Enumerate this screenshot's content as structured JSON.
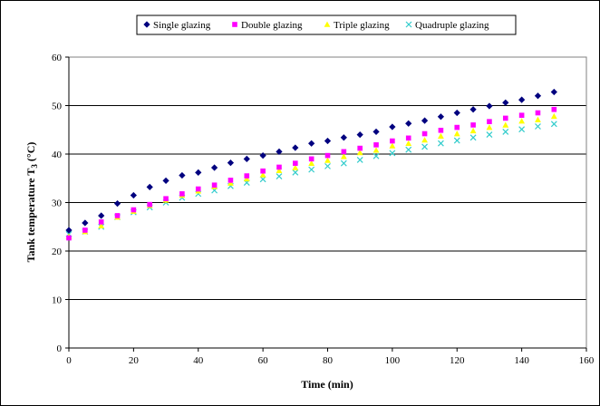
{
  "chart_data": {
    "type": "scatter",
    "title": "",
    "xlabel": "Time (min)",
    "ylabel": "Tank temperature T",
    "ylabel_sub": "3",
    "ylabel_unit": " (°C)",
    "xlim": [
      0,
      160
    ],
    "ylim": [
      0,
      60
    ],
    "x_ticks": [
      0,
      20,
      40,
      60,
      80,
      100,
      120,
      140,
      160
    ],
    "y_ticks": [
      0,
      10,
      20,
      30,
      40,
      50,
      60
    ],
    "grid": "horizontal",
    "legend_position": "top",
    "x": [
      0,
      5,
      10,
      15,
      20,
      25,
      30,
      35,
      40,
      45,
      50,
      55,
      60,
      65,
      70,
      75,
      80,
      85,
      90,
      95,
      100,
      105,
      110,
      115,
      120,
      125,
      130,
      135,
      140,
      145,
      150
    ],
    "series": [
      {
        "name": "Single glazing",
        "marker": "diamond",
        "color": "#00007F",
        "values": [
          24.3,
          25.8,
          27.3,
          29.8,
          31.5,
          33.2,
          34.5,
          35.6,
          36.2,
          37.2,
          38.2,
          39.0,
          39.7,
          40.5,
          41.3,
          42.2,
          42.7,
          43.4,
          44.0,
          44.6,
          45.6,
          46.3,
          46.9,
          47.7,
          48.5,
          49.2,
          49.9,
          50.6,
          51.2,
          52.0,
          52.8
        ]
      },
      {
        "name": "Double glazing",
        "marker": "square",
        "color": "#FF00FF",
        "values": [
          22.7,
          24.3,
          26.0,
          27.3,
          28.5,
          29.6,
          30.8,
          31.8,
          32.8,
          33.6,
          34.6,
          35.5,
          36.5,
          37.3,
          38.1,
          39.0,
          39.7,
          40.5,
          41.2,
          41.9,
          42.7,
          43.3,
          44.2,
          44.9,
          45.5,
          46.0,
          46.7,
          47.4,
          48.0,
          48.5,
          49.2
        ]
      },
      {
        "name": "Triple glazing",
        "marker": "triangle",
        "color": "#FFFF00",
        "values": [
          23.0,
          24.0,
          25.2,
          27.0,
          28.2,
          29.4,
          30.5,
          31.5,
          32.4,
          33.3,
          34.0,
          34.9,
          35.7,
          36.6,
          37.2,
          38.1,
          38.7,
          39.5,
          40.3,
          40.8,
          41.7,
          42.2,
          42.9,
          43.7,
          44.2,
          44.8,
          45.5,
          46.0,
          46.8,
          47.1,
          47.8
        ]
      },
      {
        "name": "Quadruple glazing",
        "marker": "x",
        "color": "#33CCCC",
        "values": [
          23.5,
          24.0,
          25.0,
          27.0,
          28.0,
          29.0,
          30.0,
          31.0,
          31.8,
          32.5,
          33.4,
          34.1,
          34.8,
          35.4,
          36.2,
          36.8,
          37.5,
          38.1,
          38.8,
          39.6,
          40.2,
          40.9,
          41.5,
          42.2,
          42.8,
          43.4,
          44.0,
          44.6,
          45.1,
          45.7,
          46.2
        ]
      }
    ]
  }
}
